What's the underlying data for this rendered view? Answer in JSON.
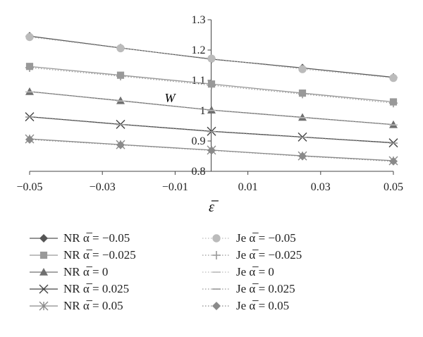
{
  "chart_data": {
    "type": "line",
    "xlabel": "ε̅",
    "ylabel": "W",
    "xlim": [
      -0.05,
      0.05
    ],
    "ylim": [
      0.8,
      1.3
    ],
    "xticks": [
      "−0.05",
      "−0.03",
      "−0.01",
      "0.01",
      "0.03",
      "0.05"
    ],
    "yticks": [
      "0.8",
      "0.9",
      "1",
      "1.1",
      "1.2",
      "1.3"
    ],
    "x": [
      -0.05,
      -0.025,
      0,
      0.025,
      0.05
    ],
    "grid": false,
    "legend_position": "bottom",
    "series": [
      {
        "name": "NR α̅ = −0.05",
        "marker": "diamond",
        "color": "#555555",
        "line": "solid",
        "values": [
          1.246,
          1.207,
          1.17,
          1.141,
          1.11
        ]
      },
      {
        "name": "NR α̅ = −0.025",
        "marker": "square",
        "color": "#999999",
        "line": "solid",
        "values": [
          1.146,
          1.117,
          1.088,
          1.058,
          1.029
        ]
      },
      {
        "name": "NR α̅ = 0",
        "marker": "triangle",
        "color": "#707070",
        "line": "solid",
        "values": [
          1.063,
          1.033,
          1.002,
          0.978,
          0.954
        ]
      },
      {
        "name": "NR α̅ = 0.025",
        "marker": "x",
        "color": "#444444",
        "line": "solid",
        "values": [
          0.98,
          0.955,
          0.932,
          0.913,
          0.894
        ]
      },
      {
        "name": "NR α̅ = 0.05",
        "marker": "asterisk",
        "color": "#8a8a8a",
        "line": "solid",
        "values": [
          0.907,
          0.888,
          0.87,
          0.851,
          0.835
        ]
      },
      {
        "name": "Je α̅ = −0.05",
        "marker": "circle",
        "color": "#bbbbbb",
        "line": "dotted",
        "values": [
          1.243,
          1.206,
          1.172,
          1.137,
          1.108
        ]
      },
      {
        "name": "Je α̅ = −0.025",
        "marker": "plus",
        "color": "#999999",
        "line": "dotted",
        "values": [
          1.142,
          1.114,
          1.084,
          1.055,
          1.025
        ]
      },
      {
        "name": "Je α̅ = 0",
        "marker": "dash",
        "color": "#bbbbbb",
        "line": "dotted",
        "values": [
          1.062,
          1.032,
          1.001,
          0.977,
          0.953
        ]
      },
      {
        "name": "Je α̅ = 0.025",
        "marker": "dash",
        "color": "#999999",
        "line": "dotted",
        "values": [
          0.979,
          0.954,
          0.931,
          0.912,
          0.893
        ]
      },
      {
        "name": "Je α̅ = 0.05",
        "marker": "diamond",
        "color": "#8a8a8a",
        "line": "dotted",
        "values": [
          0.905,
          0.887,
          0.869,
          0.85,
          0.833
        ]
      }
    ]
  }
}
